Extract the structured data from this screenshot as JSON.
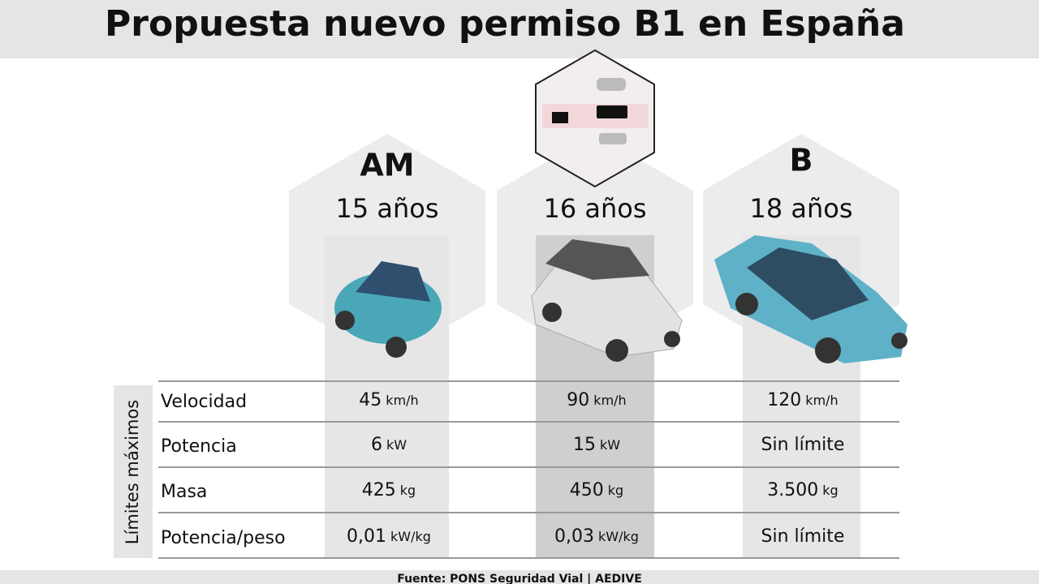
{
  "header": {
    "title": "Propuesta nuevo permiso B1 en España"
  },
  "columns": [
    {
      "license": "AM",
      "age": "15 años"
    },
    {
      "license": "",
      "age": "16 años"
    },
    {
      "license": "B",
      "age": "18 años"
    }
  ],
  "table": {
    "side_label": "Límites máximos",
    "rows": [
      {
        "label": "Velocidad",
        "cells": [
          {
            "value": "45",
            "unit": "km/h"
          },
          {
            "value": "90",
            "unit": "km/h"
          },
          {
            "value": "120",
            "unit": "km/h"
          }
        ]
      },
      {
        "label": "Potencia",
        "cells": [
          {
            "value": "6",
            "unit": "kW"
          },
          {
            "value": "15",
            "unit": "kW"
          },
          {
            "value": "Sin límite"
          }
        ]
      },
      {
        "label": "Masa",
        "cells": [
          {
            "value": "425",
            "unit": "kg"
          },
          {
            "value": "450",
            "unit": "kg"
          },
          {
            "value": "3.500",
            "unit": "kg"
          }
        ]
      },
      {
        "label": "Potencia/peso",
        "cells": [
          {
            "value": "0,01",
            "unit": "kW/kg"
          },
          {
            "value": "0,03",
            "unit": "kW/kg"
          },
          {
            "value": "Sin límite"
          }
        ]
      }
    ]
  },
  "footer": {
    "source": "Fuente: PONS Seguridad Vial | AEDIVE"
  }
}
